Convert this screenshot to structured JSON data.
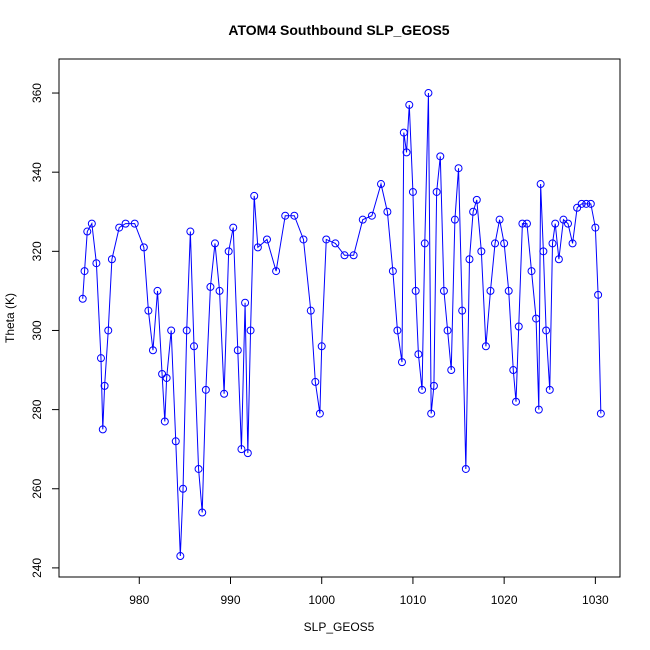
{
  "chart_data": {
    "type": "line",
    "title": "ATOM4 Southbound SLP_GEOS5",
    "x_label": "SLP_GEOS5",
    "y_label": "Theta (K)",
    "color": "#0000ff",
    "markers": "open-circle",
    "x": [
      973.8,
      974.0,
      974.3,
      974.8,
      975.3,
      975.8,
      976.0,
      976.2,
      976.6,
      977.0,
      977.8,
      978.5,
      979.5,
      980.5,
      981.0,
      981.5,
      982.0,
      982.5,
      982.8,
      983.0,
      983.5,
      984.0,
      984.5,
      984.8,
      985.2,
      985.6,
      986.0,
      986.5,
      986.9,
      987.3,
      987.8,
      988.3,
      988.8,
      989.3,
      989.8,
      990.3,
      990.8,
      991.2,
      991.6,
      991.9,
      992.2,
      992.6,
      993.0,
      994.0,
      995.0,
      996.0,
      997.0,
      998.0,
      998.8,
      999.3,
      999.8,
      1000.0,
      1000.5,
      1001.5,
      1002.5,
      1003.5,
      1004.5,
      1005.5,
      1006.5,
      1007.2,
      1007.8,
      1008.3,
      1008.8,
      1009.0,
      1009.3,
      1009.6,
      1010.0,
      1010.3,
      1010.6,
      1011.0,
      1011.3,
      1011.7,
      1012.0,
      1012.3,
      1012.6,
      1013.0,
      1013.4,
      1013.8,
      1014.2,
      1014.6,
      1015.0,
      1015.4,
      1015.8,
      1016.2,
      1016.6,
      1017.0,
      1017.5,
      1018.0,
      1018.5,
      1019.0,
      1019.5,
      1020.0,
      1020.5,
      1021.0,
      1021.3,
      1021.6,
      1022.0,
      1022.5,
      1023.0,
      1023.5,
      1023.8,
      1024.0,
      1024.3,
      1024.6,
      1025.0,
      1025.3,
      1025.6,
      1026.0,
      1026.5,
      1027.0,
      1027.5,
      1028.0,
      1028.5,
      1029.0,
      1029.5,
      1030.0,
      1030.3,
      1030.6
    ],
    "values": [
      308,
      315,
      325,
      327,
      317,
      293,
      275,
      286,
      300,
      318,
      326,
      327,
      327,
      321,
      305,
      295,
      310,
      289,
      277,
      288,
      300,
      272,
      243,
      260,
      300,
      325,
      296,
      265,
      254,
      285,
      311,
      322,
      310,
      284,
      320,
      326,
      295,
      270,
      307,
      269,
      300,
      334,
      321,
      323,
      315,
      329,
      329,
      323,
      305,
      287,
      279,
      296,
      323,
      322,
      319,
      319,
      328,
      329,
      337,
      330,
      315,
      300,
      292,
      350,
      345,
      357,
      335,
      310,
      294,
      285,
      322,
      360,
      279,
      286,
      335,
      344,
      310,
      300,
      290,
      328,
      341,
      305,
      265,
      318,
      330,
      333,
      320,
      296,
      310,
      322,
      328,
      322,
      310,
      290,
      282,
      301,
      327,
      327,
      315,
      303,
      280,
      337,
      320,
      300,
      285,
      322,
      327,
      318,
      328,
      327,
      322,
      331,
      332,
      332,
      332,
      326,
      309,
      279
    ],
    "xlim": [
      971.2,
      1032.7
    ],
    "ylim": [
      237.7,
      368.6
    ],
    "xticks": [
      980,
      990,
      1000,
      1010,
      1020,
      1030
    ],
    "yticks": [
      240,
      260,
      280,
      300,
      320,
      340,
      360
    ]
  }
}
